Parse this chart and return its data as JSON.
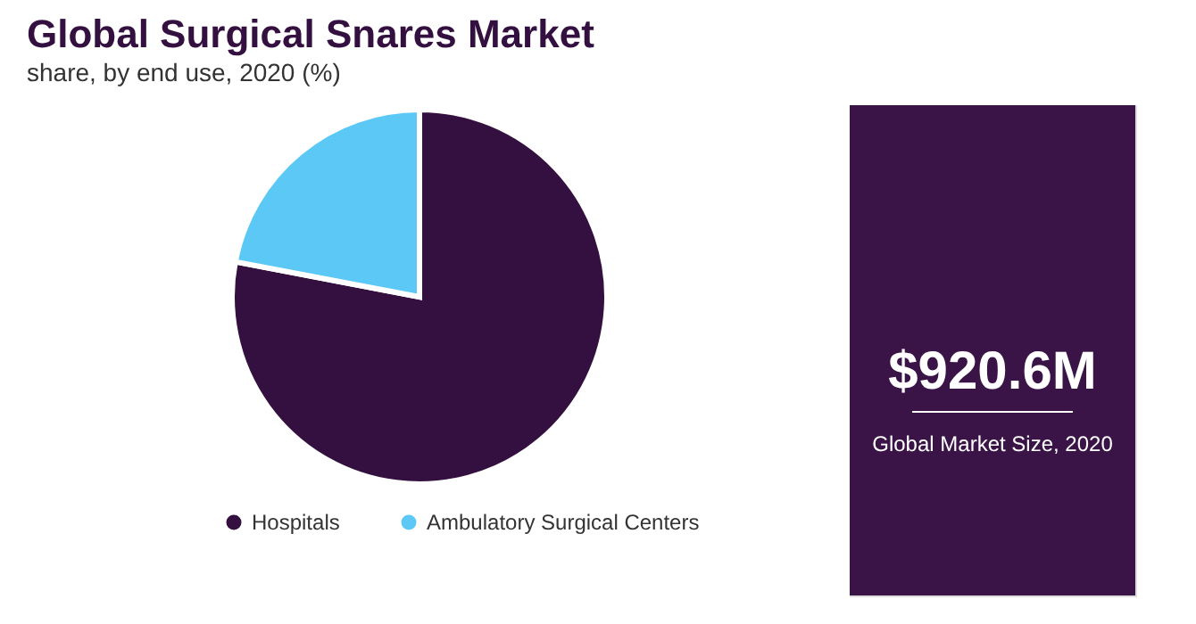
{
  "chart_data": {
    "type": "pie",
    "title": "Global Surgical Snares Market",
    "subtitle": "share, by end use, 2020 (%)",
    "categories": [
      "Hospitals",
      "Ambulatory Surgical Centers"
    ],
    "values": [
      78,
      22
    ],
    "colors": [
      "#33103f",
      "#5bc8f5"
    ],
    "legend": "bottom",
    "annotations": [
      "$920.6M",
      "Global Market Size, 2020"
    ]
  }
}
